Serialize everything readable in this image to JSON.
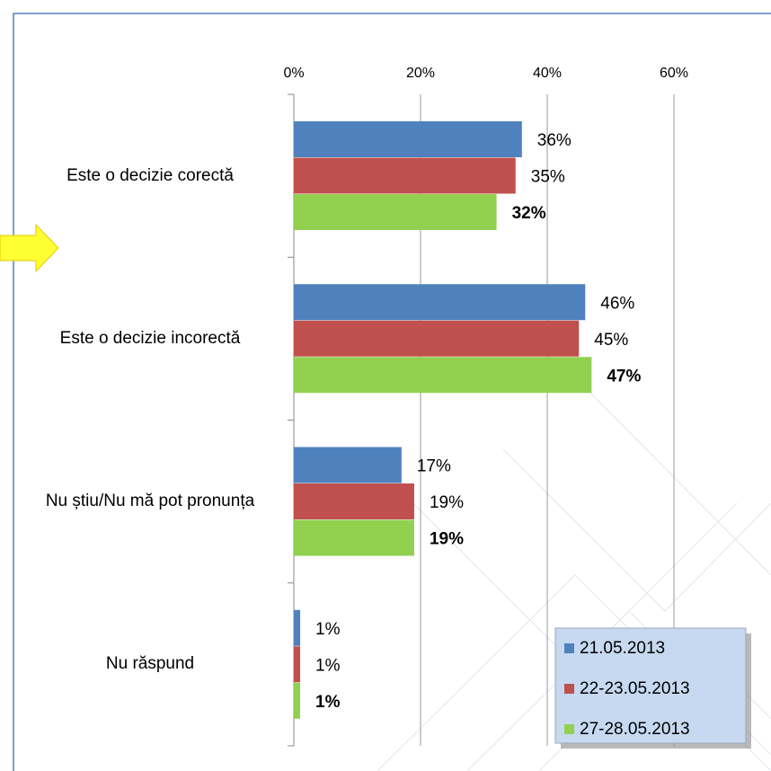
{
  "chart_data": {
    "type": "bar",
    "orientation": "horizontal",
    "categories": [
      "Este o decizie corectă",
      "Este o decizie incorectă",
      "Nu știu/Nu mă pot pronunța",
      "Nu răspund"
    ],
    "series": [
      {
        "name": "21.05.2013",
        "color": "#4f81bd",
        "values": [
          36,
          46,
          17,
          1
        ],
        "value_labels": [
          "36%",
          "46%",
          "17%",
          "1%"
        ]
      },
      {
        "name": "22-23.05.2013",
        "color": "#c0504d",
        "values": [
          35,
          45,
          19,
          1
        ],
        "value_labels": [
          "35%",
          "45%",
          "19%",
          "1%"
        ]
      },
      {
        "name": "27-28.05.2013",
        "color": "#92d050",
        "values": [
          32,
          47,
          19,
          1
        ],
        "value_labels": [
          "32%",
          "47%",
          "19%",
          "1%"
        ]
      }
    ],
    "xlim": [
      0,
      60
    ],
    "xticks": [
      {
        "value": 0,
        "label": "0%"
      },
      {
        "value": 20,
        "label": "20%"
      },
      {
        "value": 40,
        "label": "40%"
      },
      {
        "value": 60,
        "label": "60%"
      }
    ],
    "grid": true,
    "legend": "lower right"
  }
}
